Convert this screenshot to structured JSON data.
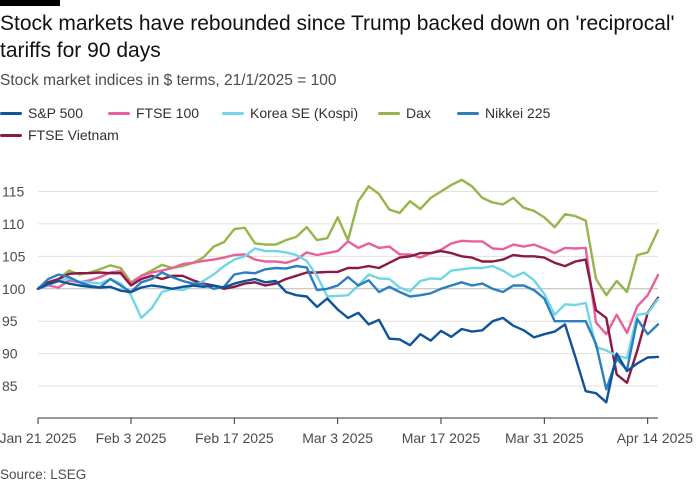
{
  "title": "Stock markets have rebounded since Trump backed down on 'reciprocal' tariffs for 90 days",
  "subtitle": "Stock market indices in $ terms, 21/1/2025 = 100",
  "source": "Source: LSEG",
  "chart_data": {
    "type": "line",
    "xlabel": "",
    "ylabel": "",
    "ylim": [
      81,
      118
    ],
    "yticks": [
      85,
      90,
      95,
      100,
      105,
      110,
      115
    ],
    "xtick_labels": [
      "Jan 21 2025",
      "Feb 3 2025",
      "Feb 17 2025",
      "Mar 3 2025",
      "Mar 17 2025",
      "Mar 31 2025",
      "Apr 14 2025"
    ],
    "xtick_index": [
      0,
      9,
      19,
      29,
      39,
      49,
      59
    ],
    "grid": true,
    "legend_position": "top-left",
    "x": [
      "2025-01-21",
      "2025-01-22",
      "2025-01-23",
      "2025-01-24",
      "2025-01-27",
      "2025-01-28",
      "2025-01-29",
      "2025-01-30",
      "2025-01-31",
      "2025-02-03",
      "2025-02-04",
      "2025-02-05",
      "2025-02-06",
      "2025-02-07",
      "2025-02-10",
      "2025-02-11",
      "2025-02-12",
      "2025-02-13",
      "2025-02-14",
      "2025-02-17",
      "2025-02-18",
      "2025-02-19",
      "2025-02-20",
      "2025-02-21",
      "2025-02-24",
      "2025-02-25",
      "2025-02-26",
      "2025-02-27",
      "2025-02-28",
      "2025-03-03",
      "2025-03-04",
      "2025-03-05",
      "2025-03-06",
      "2025-03-07",
      "2025-03-10",
      "2025-03-11",
      "2025-03-12",
      "2025-03-13",
      "2025-03-14",
      "2025-03-17",
      "2025-03-18",
      "2025-03-19",
      "2025-03-20",
      "2025-03-21",
      "2025-03-24",
      "2025-03-25",
      "2025-03-26",
      "2025-03-27",
      "2025-03-28",
      "2025-03-31",
      "2025-04-01",
      "2025-04-02",
      "2025-04-03",
      "2025-04-04",
      "2025-04-07",
      "2025-04-08",
      "2025-04-09",
      "2025-04-10",
      "2025-04-11",
      "2025-04-14",
      "2025-04-15"
    ],
    "series": [
      {
        "name": "Dax",
        "color": "#96b54a",
        "values": [
          100,
          101,
          101.5,
          102.8,
          102.2,
          102.5,
          103,
          103.6,
          103.2,
          101,
          102,
          102.8,
          103.7,
          103.2,
          103.5,
          104,
          104.8,
          106.5,
          107.2,
          109.2,
          109.4,
          107,
          106.8,
          106.8,
          107.5,
          108,
          109.5,
          107.5,
          107.8,
          111,
          107.5,
          113.5,
          115.8,
          114.6,
          112.2,
          111.7,
          113.5,
          112.3,
          114,
          115,
          116,
          116.8,
          115.8,
          114,
          113.3,
          113,
          114,
          112.5,
          112,
          111,
          109.5,
          111.5,
          111.2,
          110.5,
          101.5,
          99,
          101.2,
          99.5,
          105.2,
          105.6,
          109
        ]
      },
      {
        "name": "FTSE 100",
        "color": "#e8609b",
        "values": [
          100,
          100.5,
          100.2,
          101.3,
          101,
          101.3,
          101.8,
          102.5,
          102.7,
          100.8,
          102,
          102.5,
          102.8,
          103.2,
          103.8,
          104,
          104.3,
          104.5,
          104.8,
          105.2,
          105.3,
          104.5,
          104.2,
          104.2,
          104,
          104.5,
          105.6,
          105.2,
          105.5,
          105.8,
          107.3,
          106.3,
          107,
          106.3,
          106.5,
          105.3,
          105.3,
          104.8,
          105.5,
          106,
          107,
          107.4,
          107.3,
          107.3,
          106.2,
          106.1,
          106.8,
          106.5,
          106.8,
          106.2,
          105.5,
          106.3,
          106.2,
          106.3,
          94.8,
          93,
          96,
          93.2,
          97.3,
          99,
          102.1
        ]
      },
      {
        "name": "FTSE Vietnam",
        "color": "#8a1a45",
        "values": [
          100,
          101,
          101.5,
          102.3,
          102.4,
          102.4,
          102.5,
          102.4,
          102.4,
          100.5,
          101.5,
          102,
          101.5,
          102,
          102,
          101.3,
          100.8,
          100.5,
          100,
          100.3,
          100.8,
          101,
          100.5,
          100.8,
          101.5,
          102,
          102.5,
          102.5,
          102.6,
          102.6,
          103.2,
          103.2,
          103.5,
          103.2,
          104,
          104.8,
          105,
          105.5,
          105.5,
          105.8,
          105.5,
          105,
          104.8,
          104.2,
          104.2,
          104.5,
          105.2,
          105,
          105,
          104.8,
          104,
          103.5,
          104.2,
          104.5,
          96.7,
          95.5,
          86.8,
          85.5,
          90.5,
          96.3,
          98.6
        ]
      },
      {
        "name": "Korea SE (Kospi)",
        "color": "#70d6e6",
        "values": [
          100,
          100.6,
          101.2,
          101.6,
          101.1,
          101,
          100.8,
          101.5,
          100.8,
          99,
          95.5,
          97,
          99.5,
          100,
          99.8,
          100.5,
          101.2,
          102.2,
          103.5,
          104.5,
          105,
          106.2,
          105.8,
          105.8,
          105.6,
          105.2,
          104.3,
          102,
          98.8,
          98.9,
          99,
          100.5,
          102.2,
          101.6,
          101.5,
          100.2,
          99.6,
          101.2,
          101.6,
          101.5,
          102.8,
          103,
          103.2,
          103.2,
          103.5,
          102.8,
          101.8,
          102.5,
          101.3,
          99.2,
          96,
          97.6,
          97.5,
          97.8,
          91,
          90.5,
          89.7,
          89.3,
          96,
          96.2,
          98.4
        ]
      },
      {
        "name": "Nikkei 225",
        "color": "#2a7fbf",
        "values": [
          100,
          101.5,
          102.2,
          101.8,
          101,
          100.5,
          100.2,
          101.5,
          100.5,
          99.5,
          101,
          101.5,
          102.5,
          101.8,
          101.2,
          100.8,
          100.7,
          100,
          100.3,
          102.2,
          102.5,
          102.4,
          103,
          103.2,
          103.1,
          103.5,
          103.3,
          99.8,
          100,
          100.5,
          101.8,
          100.5,
          101.3,
          99.5,
          100.3,
          99.5,
          98.8,
          99,
          99.3,
          100,
          100.5,
          101,
          100.5,
          100.8,
          100,
          99.5,
          100.5,
          100.5,
          99.8,
          98.5,
          95,
          95,
          95,
          95,
          91.5,
          84.5,
          89.2,
          87.5,
          95.3,
          93,
          94.5
        ]
      },
      {
        "name": "S&P 500",
        "color": "#0f5499",
        "values": [
          100,
          100.7,
          101.2,
          100.8,
          100.5,
          100.3,
          100.2,
          100.3,
          99.7,
          99.5,
          100.2,
          100.5,
          100.3,
          100,
          100.3,
          100.5,
          100.3,
          100.5,
          100.2,
          100.8,
          101.2,
          101.5,
          101,
          101.2,
          99.5,
          99,
          98.8,
          97.2,
          98.5,
          96.8,
          95.5,
          96.3,
          94.5,
          95.2,
          92.3,
          92.2,
          91.3,
          93,
          92,
          93.5,
          92.6,
          93.8,
          93.4,
          93.6,
          95,
          95.5,
          94.3,
          93.6,
          92.5,
          93,
          93.4,
          94.5,
          89.5,
          84.2,
          83.9,
          82.5,
          90,
          87.3,
          88.5,
          89.4,
          89.5
        ]
      }
    ]
  },
  "legend_labels": {
    "sp500": "S&P 500",
    "ftse100": "FTSE 100",
    "kospi": "Korea SE (Kospi)",
    "dax": "Dax",
    "nikkei": "Nikkei 225",
    "vietnam": "FTSE Vietnam"
  },
  "colors": {
    "sp500": "#0f5499",
    "ftse100": "#e8609b",
    "kospi": "#70d6e6",
    "dax": "#96b54a",
    "nikkei": "#2a7fbf",
    "vietnam": "#8a1a45",
    "grid": "#e4e0dc",
    "axis": "#33302e"
  }
}
